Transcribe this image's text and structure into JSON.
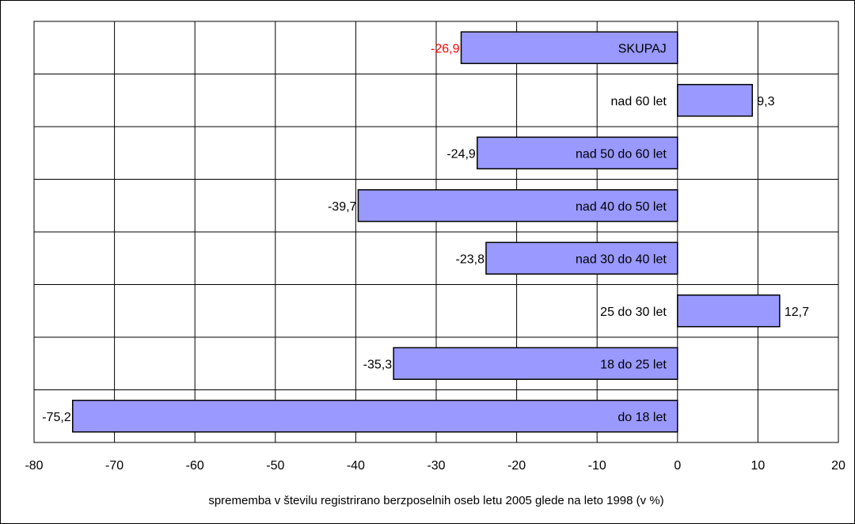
{
  "chart_data": {
    "type": "bar",
    "orientation": "horizontal",
    "categories": [
      "SKUPAJ",
      "nad 60 let",
      "nad 50 do 60 let",
      "nad 40 do 50 let",
      "nad 30 do 40 let",
      "25 do 30 let",
      "18 do 25 let",
      "do 18 let"
    ],
    "values": [
      -26.9,
      9.3,
      -24.9,
      -39.7,
      -23.8,
      12.7,
      -35.3,
      -75.2
    ],
    "value_labels": [
      "-26,9",
      "9,3",
      "-24,9",
      "-39,7",
      "-23,8",
      "12,7",
      "-35,3",
      "-75,2"
    ],
    "highlight_label_index": 0,
    "xlim": [
      -80,
      20
    ],
    "x_ticks": [
      -80,
      -70,
      -60,
      -50,
      -40,
      -30,
      -20,
      -10,
      0,
      10,
      20
    ],
    "x_tick_labels": [
      "-80",
      "-70",
      "-60",
      "-50",
      "-40",
      "-30",
      "-20",
      "-10",
      "0",
      "10",
      "20"
    ],
    "xlabel": "sprememba v številu registrirano berzposelnih oseb letu 2005 glede na leto 1998 (v %)",
    "grid": true,
    "legend": "none",
    "colors": {
      "bar_fill": "#9999ff",
      "bar_stroke": "#000000",
      "grid": "#000000",
      "highlight_label": "#ff0000",
      "text": "#000000"
    }
  }
}
